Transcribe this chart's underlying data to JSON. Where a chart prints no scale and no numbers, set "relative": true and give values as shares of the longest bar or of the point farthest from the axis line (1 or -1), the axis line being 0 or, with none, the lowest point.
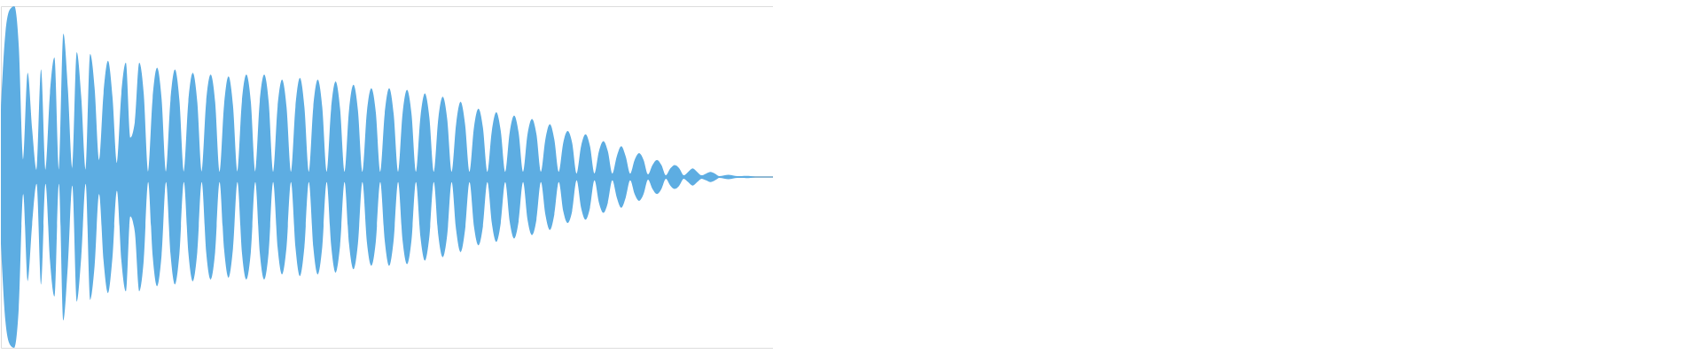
{
  "chart_data": {
    "type": "area",
    "relative": true,
    "tick_labels": false,
    "categories": [
      null,
      null,
      null,
      null,
      null,
      null,
      null,
      null,
      null,
      null,
      null,
      null,
      null,
      null,
      null,
      null,
      null,
      null,
      null,
      null,
      null,
      null,
      null,
      null,
      null,
      null,
      null,
      null,
      null,
      null,
      null,
      null,
      null,
      null,
      null,
      null,
      null,
      null,
      null,
      null,
      null,
      null,
      null,
      null,
      null,
      null,
      null,
      null,
      null,
      null,
      null,
      null,
      null,
      null,
      null,
      null,
      null,
      null,
      null,
      null,
      null,
      null,
      null,
      null,
      null,
      null,
      null,
      null,
      null,
      null,
      null,
      null,
      null,
      null,
      null,
      null,
      null,
      null,
      null,
      null,
      null,
      null,
      null,
      null,
      null,
      null,
      null,
      null,
      null,
      null,
      null,
      null,
      null,
      null,
      null,
      null,
      null,
      null,
      null,
      null,
      null,
      null,
      null,
      null,
      null,
      null,
      null,
      null,
      null,
      null,
      null,
      null,
      null,
      null,
      null,
      null,
      null,
      null,
      null,
      null,
      null,
      null,
      null,
      null,
      null,
      null,
      null,
      null,
      null,
      null,
      null,
      null,
      null,
      null,
      null,
      null,
      null,
      null,
      null,
      null,
      null,
      null,
      null,
      null,
      null,
      null,
      null,
      null,
      null,
      null,
      null,
      null,
      null,
      null,
      null,
      null,
      null,
      null,
      null,
      null,
      null,
      null,
      null,
      null,
      null,
      null,
      null,
      null,
      null,
      null,
      null,
      null,
      null,
      null
    ],
    "series": [
      {
        "color": "#5dade2",
        "values": [
          0.39,
          0.84,
          0.98,
          1,
          0.77,
          0.1,
          0.61,
          0.28,
          0.04,
          0.63,
          0.04,
          0.49,
          0.7,
          0.04,
          0.84,
          0.52,
          0.05,
          0.73,
          0.47,
          0.04,
          0.72,
          0.52,
          0.1,
          0.49,
          0.68,
          0.47,
          0.08,
          0.49,
          0.67,
          0.23,
          0.32,
          0.67,
          0.49,
          0.03,
          0.46,
          0.64,
          0.46,
          0.03,
          0.45,
          0.63,
          0.45,
          0.03,
          0.44,
          0.61,
          0.44,
          0.03,
          0.44,
          0.6,
          0.44,
          0.03,
          0.42,
          0.59,
          0.42,
          0.03,
          0.44,
          0.6,
          0.44,
          0.03,
          0.44,
          0.6,
          0.44,
          0.03,
          0.41,
          0.57,
          0.41,
          0.03,
          0.41,
          0.58,
          0.41,
          0.03,
          0.41,
          0.57,
          0.41,
          0.03,
          0.4,
          0.56,
          0.4,
          0.03,
          0.39,
          0.54,
          0.39,
          0.03,
          0.38,
          0.52,
          0.38,
          0.03,
          0.37,
          0.52,
          0.37,
          0.03,
          0.37,
          0.51,
          0.37,
          0.03,
          0.35,
          0.49,
          0.35,
          0.03,
          0.34,
          0.47,
          0.34,
          0.03,
          0.31,
          0.44,
          0.31,
          0.03,
          0.29,
          0.4,
          0.29,
          0.03,
          0.27,
          0.38,
          0.27,
          0.03,
          0.26,
          0.36,
          0.26,
          0.03,
          0.25,
          0.34,
          0.25,
          0.03,
          0.22,
          0.31,
          0.22,
          0.03,
          0.2,
          0.27,
          0.2,
          0.02,
          0.18,
          0.25,
          0.18,
          0.02,
          0.15,
          0.21,
          0.15,
          0.02,
          0.12,
          0.18,
          0.12,
          0.02,
          0.1,
          0.14,
          0.1,
          0.015,
          0.07,
          0.1,
          0.07,
          0.01,
          0.05,
          0.07,
          0.05,
          0.01,
          0.03,
          0.05,
          0.03,
          0.01,
          0.02,
          0.03,
          0.02,
          0.005,
          0.009,
          0.013,
          0.009,
          0.005,
          0.005,
          0.006,
          0.005,
          0.003,
          0.003,
          0.003,
          0.003,
          0.003
        ]
      },
      {
        "color": "#5dade2",
        "values": [
          -0.39,
          -0.84,
          -0.98,
          -1,
          -0.77,
          -0.1,
          -0.61,
          -0.28,
          -0.04,
          -0.63,
          -0.04,
          -0.49,
          -0.7,
          -0.04,
          -0.84,
          -0.52,
          -0.05,
          -0.73,
          -0.47,
          -0.04,
          -0.72,
          -0.52,
          -0.1,
          -0.49,
          -0.68,
          -0.47,
          -0.08,
          -0.49,
          -0.67,
          -0.23,
          -0.32,
          -0.67,
          -0.49,
          -0.03,
          -0.46,
          -0.64,
          -0.46,
          -0.03,
          -0.45,
          -0.63,
          -0.45,
          -0.03,
          -0.44,
          -0.61,
          -0.44,
          -0.03,
          -0.44,
          -0.6,
          -0.44,
          -0.03,
          -0.42,
          -0.59,
          -0.42,
          -0.03,
          -0.44,
          -0.6,
          -0.44,
          -0.03,
          -0.44,
          -0.6,
          -0.44,
          -0.03,
          -0.41,
          -0.57,
          -0.41,
          -0.03,
          -0.41,
          -0.58,
          -0.41,
          -0.03,
          -0.41,
          -0.57,
          -0.41,
          -0.03,
          -0.4,
          -0.56,
          -0.4,
          -0.03,
          -0.39,
          -0.54,
          -0.39,
          -0.03,
          -0.38,
          -0.52,
          -0.38,
          -0.03,
          -0.37,
          -0.52,
          -0.37,
          -0.03,
          -0.37,
          -0.51,
          -0.37,
          -0.03,
          -0.35,
          -0.49,
          -0.35,
          -0.03,
          -0.34,
          -0.47,
          -0.34,
          -0.03,
          -0.31,
          -0.44,
          -0.31,
          -0.03,
          -0.29,
          -0.4,
          -0.29,
          -0.03,
          -0.27,
          -0.38,
          -0.27,
          -0.03,
          -0.26,
          -0.36,
          -0.26,
          -0.03,
          -0.25,
          -0.34,
          -0.25,
          -0.03,
          -0.22,
          -0.31,
          -0.22,
          -0.03,
          -0.2,
          -0.27,
          -0.2,
          -0.02,
          -0.18,
          -0.25,
          -0.18,
          -0.02,
          -0.15,
          -0.21,
          -0.15,
          -0.02,
          -0.12,
          -0.18,
          -0.12,
          -0.02,
          -0.1,
          -0.14,
          -0.1,
          -0.015,
          -0.07,
          -0.1,
          -0.07,
          -0.01,
          -0.05,
          -0.07,
          -0.05,
          -0.01,
          -0.03,
          -0.05,
          -0.03,
          -0.01,
          -0.02,
          -0.03,
          -0.02,
          -0.005,
          -0.009,
          -0.013,
          -0.009,
          -0.005,
          -0.005,
          -0.006,
          -0.005,
          -0.003,
          -0.003,
          -0.003,
          -0.003,
          -0.003
        ]
      }
    ]
  }
}
